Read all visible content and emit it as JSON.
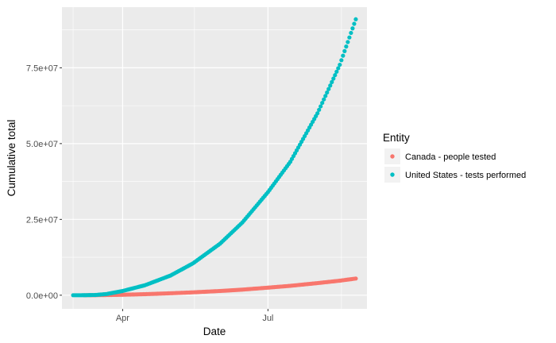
{
  "chart_data": {
    "type": "scatter",
    "xlabel": "Date",
    "ylabel": "Cumulative total",
    "x_domain": [
      "2020-03-01",
      "2020-08-25"
    ],
    "xlim": [
      "2020-02-23",
      "2020-09-01"
    ],
    "ylim": [
      -4500000,
      95000000
    ],
    "x_ticks": [
      {
        "date": "2020-04-01",
        "label": "Apr"
      },
      {
        "date": "2020-07-01",
        "label": "Jul"
      }
    ],
    "x_minor_ticks": [
      "2020-03-01",
      "2020-05-16",
      "2020-08-16"
    ],
    "y_ticks": [
      {
        "value": 0,
        "label": "0.0e+00"
      },
      {
        "value": 25000000,
        "label": "2.5e+07"
      },
      {
        "value": 50000000,
        "label": "5.0e+07"
      },
      {
        "value": 75000000,
        "label": "7.5e+07"
      }
    ],
    "y_minor_ticks": [
      12500000,
      37500000,
      62500000,
      87500000
    ],
    "grid": true,
    "legend": {
      "title": "Entity",
      "placement": "right"
    },
    "series": [
      {
        "name": "Canada - people tested",
        "color": "#F8766D",
        "points": [
          [
            "2020-03-08",
            5000
          ],
          [
            "2020-03-15",
            20000
          ],
          [
            "2020-03-22",
            60000
          ],
          [
            "2020-04-01",
            150000
          ],
          [
            "2020-04-15",
            350000
          ],
          [
            "2020-05-01",
            650000
          ],
          [
            "2020-05-15",
            950000
          ],
          [
            "2020-06-01",
            1400000
          ],
          [
            "2020-06-15",
            1850000
          ],
          [
            "2020-07-01",
            2500000
          ],
          [
            "2020-07-15",
            3100000
          ],
          [
            "2020-08-01",
            4000000
          ],
          [
            "2020-08-15",
            4800000
          ],
          [
            "2020-08-25",
            5500000
          ]
        ]
      },
      {
        "name": "United States - tests performed",
        "color": "#00BFC4",
        "points": [
          [
            "2020-03-01",
            0
          ],
          [
            "2020-03-08",
            10000
          ],
          [
            "2020-03-15",
            80000
          ],
          [
            "2020-03-22",
            400000
          ],
          [
            "2020-04-01",
            1400000
          ],
          [
            "2020-04-15",
            3300000
          ],
          [
            "2020-05-01",
            6500000
          ],
          [
            "2020-05-15",
            10500000
          ],
          [
            "2020-06-01",
            17000000
          ],
          [
            "2020-06-15",
            24000000
          ],
          [
            "2020-07-01",
            34000000
          ],
          [
            "2020-07-15",
            44000000
          ],
          [
            "2020-08-01",
            60000000
          ],
          [
            "2020-08-15",
            76000000
          ],
          [
            "2020-08-25",
            91000000
          ]
        ]
      }
    ]
  }
}
